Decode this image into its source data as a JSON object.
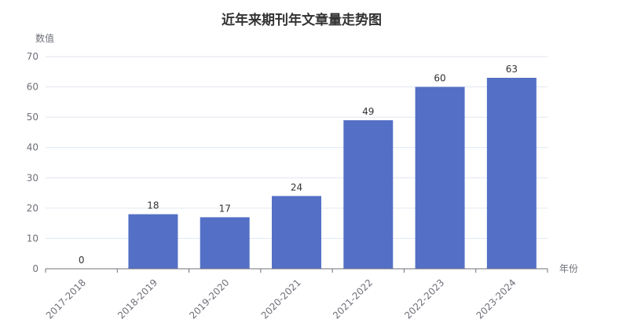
{
  "chart_data": {
    "type": "bar",
    "title": "近年来期刊年文章量走势图",
    "xlabel": "年份",
    "ylabel": "数值",
    "categories": [
      "2017-2018",
      "2018-2019",
      "2019-2020",
      "2020-2021",
      "2021-2022",
      "2022-2023",
      "2023-2024"
    ],
    "values": [
      0,
      18,
      17,
      24,
      49,
      60,
      63
    ],
    "ylim": [
      0,
      70
    ],
    "yticks": [
      0,
      10,
      20,
      30,
      40,
      50,
      60,
      70
    ],
    "grid": true,
    "legend": "none",
    "data_labels": true,
    "colors": {
      "bar": "#5470c6",
      "grid": "#e0e6f1",
      "axis": "#6e7079",
      "title": "#333333"
    }
  }
}
